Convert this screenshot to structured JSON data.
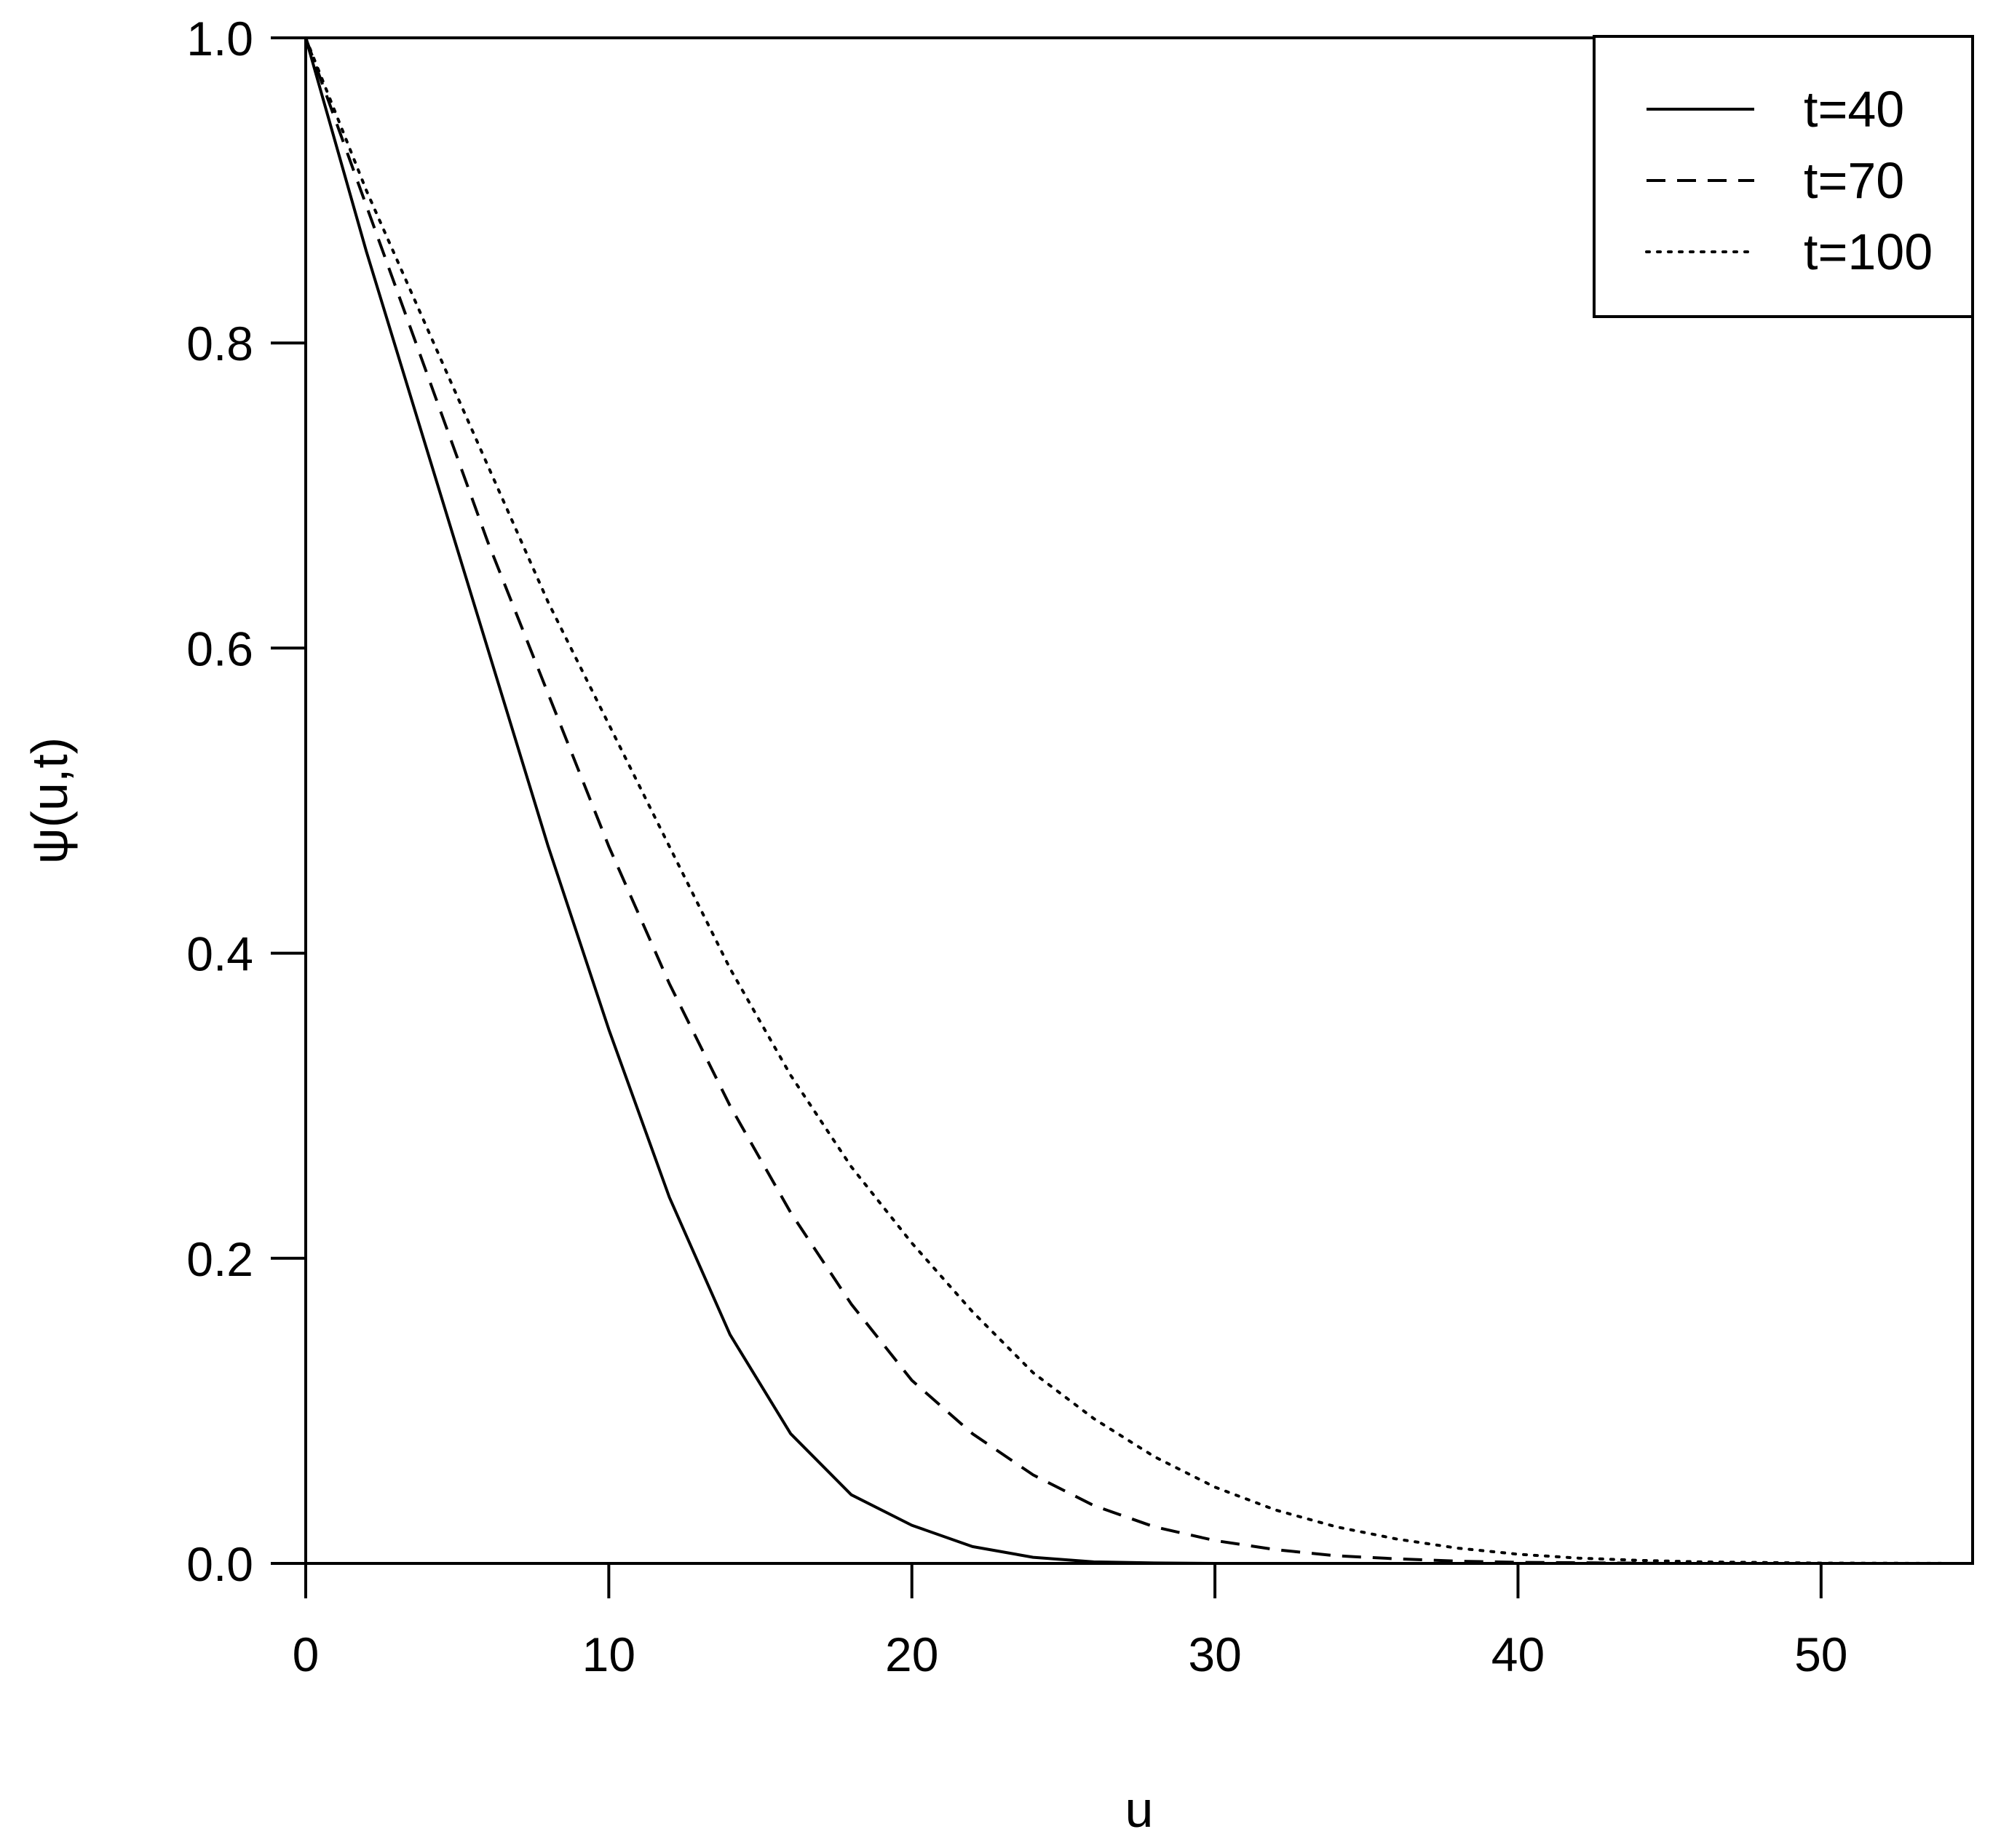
{
  "chart_data": {
    "type": "line",
    "xlabel": "u",
    "ylabel": "ψ(u,t)",
    "xlim": [
      0,
      55
    ],
    "ylim": [
      0,
      1
    ],
    "x_ticks": [
      0,
      10,
      20,
      30,
      40,
      50
    ],
    "x_tick_labels": [
      "0",
      "10",
      "20",
      "30",
      "40",
      "50"
    ],
    "y_ticks": [
      0,
      0.2,
      0.4,
      0.6,
      0.8,
      1.0
    ],
    "y_tick_labels": [
      "0.0",
      "0.2",
      "0.4",
      "0.6",
      "0.8",
      "1.0"
    ],
    "grid": false,
    "legend_position": "top-right",
    "series": [
      {
        "name": "t=40",
        "line_style": "solid",
        "x": [
          0,
          2,
          4,
          6,
          8,
          10,
          12,
          14,
          16,
          18,
          20,
          22,
          24,
          26,
          28,
          30,
          35,
          40,
          45,
          50,
          55
        ],
        "y": [
          1.0,
          0.86,
          0.73,
          0.6,
          0.47,
          0.35,
          0.24,
          0.15,
          0.085,
          0.045,
          0.025,
          0.011,
          0.004,
          0.001,
          0.0003,
          0.0,
          0.0,
          0.0,
          0.0,
          0.0,
          0.0
        ]
      },
      {
        "name": "t=70",
        "line_style": "dashed",
        "x": [
          0,
          2,
          4,
          6,
          8,
          10,
          12,
          14,
          16,
          18,
          20,
          22,
          24,
          26,
          28,
          30,
          32,
          34,
          36,
          38,
          40,
          45,
          50,
          55
        ],
        "y": [
          1.0,
          0.89,
          0.78,
          0.67,
          0.57,
          0.47,
          0.38,
          0.3,
          0.23,
          0.17,
          0.12,
          0.085,
          0.058,
          0.038,
          0.024,
          0.015,
          0.009,
          0.005,
          0.003,
          0.0015,
          0.0007,
          0.0,
          0.0,
          0.0
        ]
      },
      {
        "name": "t=100",
        "line_style": "dotted",
        "x": [
          0,
          2,
          4,
          6,
          8,
          10,
          12,
          14,
          16,
          18,
          20,
          22,
          24,
          26,
          28,
          30,
          32,
          34,
          36,
          38,
          40,
          42,
          44,
          46,
          50,
          55
        ],
        "y": [
          1.0,
          0.9,
          0.81,
          0.72,
          0.63,
          0.55,
          0.47,
          0.39,
          0.32,
          0.26,
          0.21,
          0.165,
          0.125,
          0.095,
          0.07,
          0.05,
          0.035,
          0.024,
          0.016,
          0.01,
          0.006,
          0.0035,
          0.002,
          0.001,
          0.0002,
          0.0
        ]
      }
    ]
  }
}
